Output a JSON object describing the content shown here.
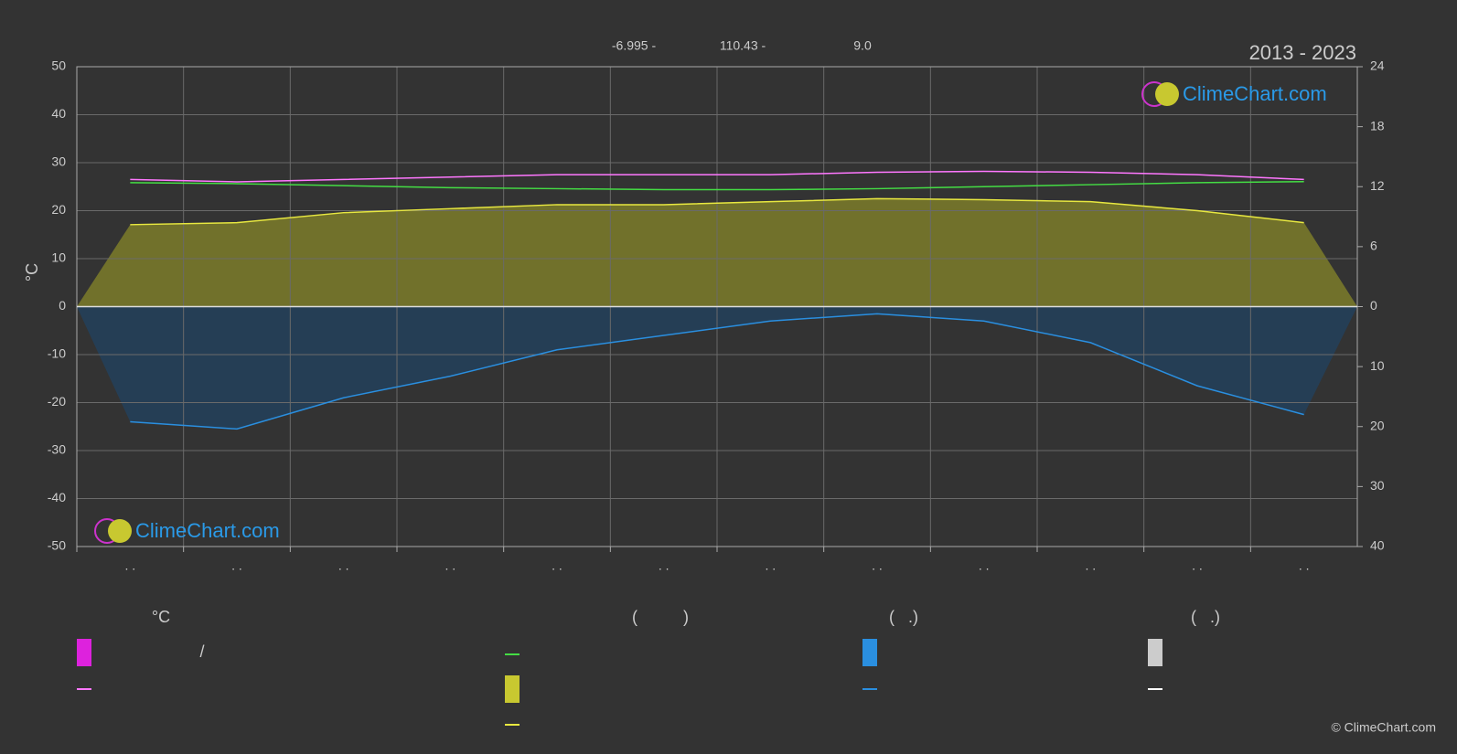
{
  "header": {
    "latitude": "-6.995 -",
    "longitude": "110.43 -",
    "elevation": "9.0",
    "years": "2013 - 2023"
  },
  "logos": [
    "ClimeChart.com",
    "ClimeChart.com"
  ],
  "copyright": "© ClimeChart.com",
  "legend_headers": [
    "°C",
    "(          )",
    "(   .)",
    "(   .)"
  ],
  "legend_slash": "/",
  "chart_data": {
    "type": "line",
    "ylabel": "°C",
    "categories": [
      ". .",
      ". .",
      ". .",
      ". .",
      ". .",
      ". .",
      ". .",
      ". .",
      ". .",
      ". .",
      ". .",
      ". ."
    ],
    "ylim": [
      -50,
      50
    ],
    "yticks": [
      -50,
      -40,
      -30,
      -20,
      -10,
      0,
      10,
      20,
      30,
      40,
      50
    ],
    "y2lim": [
      0,
      24
    ],
    "y2ticks": [
      0,
      6,
      12,
      18,
      24
    ],
    "y3lim": [
      0,
      40
    ],
    "y3ticks": [
      0,
      10,
      20,
      30,
      40
    ],
    "grid": true,
    "series": [
      {
        "color": "#ff77ff",
        "values": [
          26.5,
          26.0,
          26.5,
          27.0,
          27.5,
          27.5,
          27.5,
          28.0,
          28.2,
          28.0,
          27.5,
          26.5
        ]
      },
      {
        "color": "#44dd44",
        "axis": "y2",
        "values": [
          12.4,
          12.3,
          12.1,
          11.9,
          11.8,
          11.7,
          11.7,
          11.8,
          12.0,
          12.2,
          12.4,
          12.5
        ]
      },
      {
        "color": "#e8e840",
        "axis": "y2",
        "area": "#7d7d2a",
        "values": [
          8.2,
          8.4,
          9.4,
          9.8,
          10.2,
          10.2,
          10.5,
          10.8,
          10.7,
          10.5,
          9.6,
          8.4
        ]
      },
      {
        "color": "#2a8fe0",
        "axis": "y3",
        "area": "#23415c",
        "values": [
          19.2,
          20.4,
          15.2,
          11.6,
          7.2,
          4.8,
          2.4,
          1.2,
          2.4,
          6.0,
          13.2,
          18.0
        ]
      }
    ]
  }
}
